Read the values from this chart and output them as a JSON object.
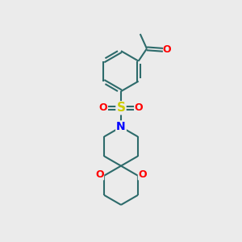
{
  "bg_color": "#ebebeb",
  "bond_color": "#2d6b6b",
  "oxygen_color": "#ff0000",
  "nitrogen_color": "#0000ff",
  "sulfur_color": "#cccc00",
  "bond_width": 1.5,
  "figsize": [
    3.0,
    3.0
  ],
  "dpi": 100,
  "xlim": [
    0,
    10
  ],
  "ylim": [
    0,
    10
  ]
}
